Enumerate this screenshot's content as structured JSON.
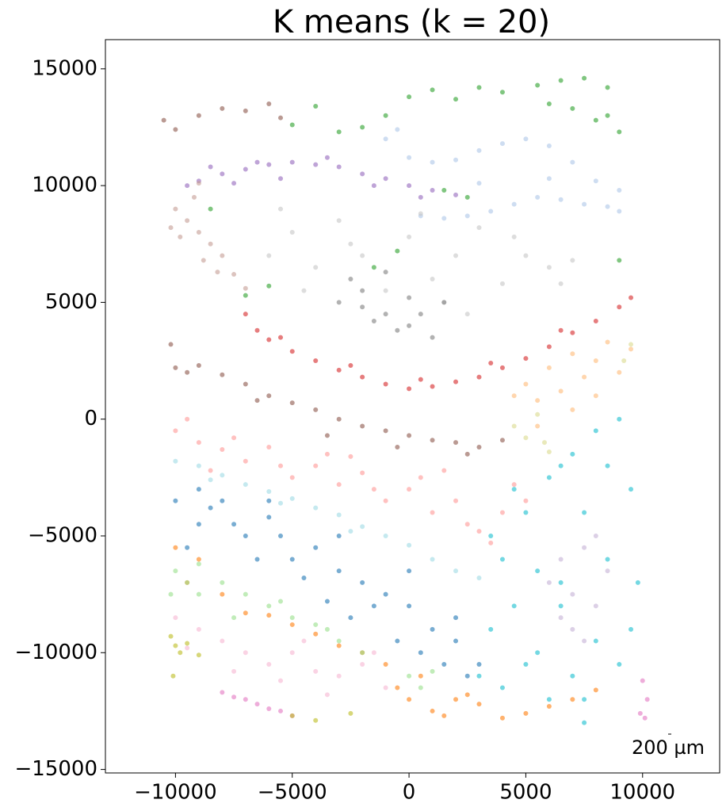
{
  "chart_data": {
    "type": "scatter",
    "title": "K means (k = 20)",
    "annotation": "200 µm",
    "xlim": [
      -13000,
      13300
    ],
    "ylim": [
      -15150,
      16250
    ],
    "xticks": [
      {
        "value": -10000,
        "label": "−10000"
      },
      {
        "value": -5000,
        "label": "−5000"
      },
      0,
      5000,
      10000
    ],
    "yticks": [
      {
        "value": -15000,
        "label": "−15000"
      },
      {
        "value": -10000,
        "label": "−10000"
      },
      {
        "value": -5000,
        "label": "−5000"
      },
      0,
      5000,
      10000,
      15000
    ],
    "series": [
      {
        "color": "#aec7e8",
        "x": [
          -1000,
          0,
          1000,
          2000,
          3000,
          4000,
          5000,
          6000,
          7000,
          8000,
          9000,
          500,
          1500,
          2500,
          3500,
          4500,
          5500,
          6500,
          7500,
          8500,
          9000,
          -500,
          3000,
          6000
        ],
        "y": [
          12000,
          11200,
          11000,
          11100,
          11500,
          11800,
          12000,
          11700,
          11000,
          10200,
          9800,
          8700,
          8600,
          8700,
          8900,
          9200,
          9500,
          9400,
          9200,
          9100,
          8900,
          12400,
          10100,
          10300
        ]
      },
      {
        "color": "#2ca02c",
        "x": [
          -5000,
          -4000,
          -3000,
          -2000,
          -1000,
          0,
          1000,
          2000,
          3000,
          4000,
          5500,
          6500,
          7500,
          8500,
          9000,
          6000,
          7000,
          8000,
          8500,
          -7000,
          -1500,
          -500,
          1500,
          2500,
          9000,
          -6000,
          -8500
        ],
        "y": [
          12600,
          13400,
          12300,
          12500,
          13000,
          13800,
          14100,
          13700,
          14200,
          14000,
          14300,
          14500,
          14600,
          14200,
          12300,
          13500,
          13300,
          12800,
          13000,
          5300,
          6500,
          7200,
          9800,
          9500,
          6800,
          5700,
          9000
        ]
      },
      {
        "color": "#9467bd",
        "x": [
          -9500,
          -9000,
          -8000,
          -7000,
          -6000,
          -5000,
          -4000,
          -3000,
          -2000,
          -1000,
          0,
          1000,
          2000,
          -8500,
          -7500,
          -5500,
          -3500,
          -1500,
          500,
          -6500
        ],
        "y": [
          10000,
          10200,
          10500,
          10700,
          10900,
          11000,
          10900,
          10800,
          10500,
          10300,
          10000,
          9800,
          9600,
          10800,
          10100,
          10300,
          11200,
          10000,
          9500,
          11000
        ]
      },
      {
        "color": "#c49c94",
        "x": [
          -10000,
          -9500,
          -9000,
          -8500,
          -8000,
          -7500,
          -7000,
          -9800,
          -9200,
          -8800,
          -8200,
          -9000,
          -10200
        ],
        "y": [
          9000,
          8500,
          8000,
          7500,
          7000,
          6200,
          5600,
          7800,
          9500,
          6800,
          6300,
          10100,
          8200
        ]
      },
      {
        "color": "#8c564b",
        "x": [
          -10500,
          -10000,
          -9000,
          -8000,
          -7000,
          -6000,
          -5500,
          -10000,
          -9000,
          -8000,
          -7000,
          -6000,
          -5000,
          -4000,
          -3000,
          -2000,
          -1000,
          0,
          1000,
          2000,
          3000,
          4000,
          -9500,
          -6500,
          -3500,
          -500,
          2500,
          -10200
        ],
        "y": [
          12800,
          12400,
          13000,
          13300,
          13200,
          13500,
          12900,
          2200,
          2300,
          1900,
          1500,
          1000,
          700,
          400,
          0,
          -300,
          -500,
          -700,
          -900,
          -1000,
          -1200,
          -900,
          2000,
          800,
          -700,
          -1200,
          -1500,
          3200
        ]
      },
      {
        "color": "#d62728",
        "x": [
          -7000,
          -6500,
          -6000,
          -5000,
          -4000,
          -3000,
          -2000,
          -1000,
          0,
          1000,
          2000,
          3000,
          4000,
          5000,
          6000,
          7000,
          8000,
          9000,
          9500,
          -5500,
          -2500,
          500,
          3500,
          6500
        ],
        "y": [
          4500,
          3800,
          3400,
          2900,
          2500,
          2100,
          1800,
          1500,
          1300,
          1400,
          1600,
          1800,
          2200,
          2600,
          3100,
          3700,
          4200,
          4800,
          5200,
          3500,
          2300,
          1700,
          2400,
          3800
        ]
      },
      {
        "color": "#c7c7c7",
        "x": [
          -6000,
          -5000,
          -4000,
          -3000,
          -2000,
          -1000,
          0,
          1000,
          2000,
          3000,
          4000,
          5000,
          6000,
          7000,
          -4500,
          -2500,
          500,
          2500,
          4500,
          6500,
          -5500,
          1500
        ],
        "y": [
          7000,
          8000,
          6500,
          8500,
          7000,
          5500,
          7800,
          6000,
          7000,
          8200,
          5800,
          7000,
          6500,
          6800,
          5500,
          7500,
          8800,
          4500,
          7800,
          5800,
          9000,
          5000
        ]
      },
      {
        "color": "#7f7f7f",
        "x": [
          -3000,
          -2500,
          -2000,
          -1500,
          -1000,
          -500,
          0,
          500,
          1000,
          1500,
          -2000,
          -1000,
          0
        ],
        "y": [
          5000,
          6000,
          5500,
          4200,
          6300,
          3800,
          5200,
          4500,
          3500,
          5000,
          4800,
          4500,
          4000
        ]
      },
      {
        "color": "#ffbb78",
        "x": [
          4500,
          5000,
          5500,
          6000,
          6500,
          7000,
          7500,
          8000,
          8500,
          9000,
          9500,
          5500,
          7000,
          8000
        ],
        "y": [
          1000,
          1500,
          800,
          2200,
          1200,
          2800,
          1800,
          2500,
          3300,
          2000,
          3000,
          -300,
          400,
          1000
        ]
      },
      {
        "color": "#dbdb8d",
        "x": [
          4500,
          5000,
          5500,
          5800,
          9200,
          9500,
          6000
        ],
        "y": [
          -300,
          -800,
          200,
          -1000,
          2500,
          3200,
          -1400
        ]
      },
      {
        "color": "#ff9896",
        "x": [
          -10000,
          -9000,
          -8000,
          -7000,
          -6000,
          -5000,
          -4000,
          -3000,
          -2000,
          -1000,
          0,
          1000,
          2000,
          3000,
          4000,
          5000,
          -9500,
          -7500,
          -5500,
          -3500,
          -1500,
          500,
          2500,
          4500,
          -8500,
          -2500,
          1500,
          3500
        ],
        "y": [
          -500,
          -1000,
          -1300,
          -1800,
          -1200,
          -2500,
          -2000,
          -2800,
          -2300,
          -3500,
          -3000,
          -4000,
          -3500,
          -4800,
          -4000,
          -3500,
          0,
          -800,
          -2000,
          -1500,
          -3000,
          -2500,
          -4500,
          -2800,
          -2200,
          -1600,
          -2200,
          -5300
        ]
      },
      {
        "color": "#9edae5",
        "x": [
          -10000,
          -9000,
          -8000,
          -7000,
          -6000,
          -5000,
          -4000,
          -3000,
          -2000,
          -1000,
          0,
          1000,
          2000,
          3000,
          -8500,
          -5500,
          -2500
        ],
        "y": [
          -1800,
          -2000,
          -2400,
          -2800,
          -3100,
          -3400,
          -3800,
          -4100,
          -4600,
          -5000,
          -5400,
          -6000,
          -6500,
          -6800,
          -2600,
          -3600,
          -4800
        ]
      },
      {
        "color": "#1f77b4",
        "x": [
          -10000,
          -9000,
          -8000,
          -7000,
          -6000,
          -5000,
          -4000,
          -3000,
          -2000,
          -1000,
          0,
          1000,
          2000,
          3000,
          -9500,
          -8500,
          -7500,
          -6500,
          -5500,
          -4500,
          -3500,
          -2500,
          -1500,
          -500,
          500,
          1500,
          2500,
          -9000,
          -6000,
          -3000,
          0,
          2000
        ],
        "y": [
          -3500,
          -4500,
          -3500,
          -5000,
          -4200,
          -6000,
          -5500,
          -6500,
          -7000,
          -7500,
          -8000,
          -9000,
          -9500,
          -10500,
          -5500,
          -3800,
          -4500,
          -6000,
          -5000,
          -6800,
          -7800,
          -8500,
          -8000,
          -9500,
          -10000,
          -10500,
          -11000,
          -3000,
          -3500,
          -5000,
          -6500,
          -8500
        ]
      },
      {
        "color": "#ff7f0e",
        "x": [
          -10000,
          -9000,
          -8000,
          -7000,
          -6000,
          -5000,
          -4000,
          -3000,
          -2000,
          -1000,
          0,
          1000,
          2000,
          3000,
          4000,
          5000,
          6000,
          7000,
          8000,
          -500,
          500,
          1500,
          2500,
          -9500
        ],
        "y": [
          -5500,
          -6000,
          -7500,
          -8300,
          -8400,
          -8800,
          -9200,
          -9700,
          -10000,
          -10500,
          -12000,
          -12500,
          -12000,
          -12200,
          -12800,
          -12600,
          -12300,
          -12000,
          -11600,
          -11500,
          -11000,
          -12700,
          -11800,
          -7000
        ]
      },
      {
        "color": "#98df8a",
        "x": [
          -10000,
          -9500,
          -9000,
          -8000,
          -7000,
          -6000,
          -5000,
          -4000,
          -3000,
          -2000,
          -9000,
          -7500,
          -5500,
          -3500,
          0,
          500,
          1000,
          -10200
        ],
        "y": [
          -6500,
          -7000,
          -7500,
          -7000,
          -7500,
          -8000,
          -8500,
          -8800,
          -9500,
          -10000,
          -6200,
          -8500,
          -7800,
          -9000,
          -11000,
          -11500,
          -10800,
          -7500
        ]
      },
      {
        "color": "#f7b6d2",
        "x": [
          -10000,
          -9000,
          -8000,
          -7000,
          -6000,
          -5000,
          -4000,
          -3000,
          -2000,
          -1000,
          -9500,
          -7500,
          -5500,
          -3500,
          -1500,
          -4500
        ],
        "y": [
          -8500,
          -9000,
          -9500,
          -10000,
          -10500,
          -10000,
          -10800,
          -11000,
          -10500,
          -11500,
          -9800,
          -10800,
          -11200,
          -11800,
          -10000,
          -9500
        ]
      },
      {
        "color": "#e377c2",
        "x": [
          -8000,
          -7500,
          -7000,
          -6500,
          -6000,
          -5500,
          -5000,
          10000,
          10200,
          10100,
          9900
        ],
        "y": [
          -11700,
          -11900,
          -12000,
          -12200,
          -12400,
          -12500,
          -12700,
          -11200,
          -12000,
          -12800,
          -12600
        ]
      },
      {
        "color": "#bcbd22",
        "x": [
          -10200,
          -10000,
          -9800,
          -9500,
          -9000,
          -10100,
          -5000,
          -4000,
          -2500
        ],
        "y": [
          -9300,
          -9700,
          -10000,
          -9600,
          -10100,
          -11000,
          -12700,
          -12900,
          -12600
        ]
      },
      {
        "color": "#17becf",
        "x": [
          3500,
          4000,
          5000,
          6000,
          7000,
          8000,
          9000,
          9500,
          4500,
          5500,
          6500,
          7500,
          8500,
          9500,
          3000,
          4000,
          5000,
          6000,
          7000,
          8000,
          9000,
          3500,
          4500,
          5500,
          6500,
          7500,
          8500,
          9800,
          7500,
          6500
        ],
        "y": [
          -9000,
          -6000,
          -4000,
          -2500,
          -1500,
          -500,
          0,
          -3000,
          -8000,
          -6500,
          -2000,
          -4000,
          -6000,
          -9000,
          -11000,
          -11500,
          -10500,
          -12000,
          -11000,
          -9500,
          -10500,
          -5000,
          -3000,
          -10000,
          -8000,
          -12000,
          -2000,
          -7000,
          -13000,
          -7000
        ]
      },
      {
        "color": "#c5b0d5",
        "x": [
          6000,
          6500,
          7000,
          7500,
          8000,
          8500,
          6500,
          7500,
          8000,
          7000
        ],
        "y": [
          -7000,
          -6000,
          -7500,
          -5500,
          -8000,
          -6500,
          -8500,
          -9500,
          -5000,
          -9000
        ]
      }
    ]
  }
}
